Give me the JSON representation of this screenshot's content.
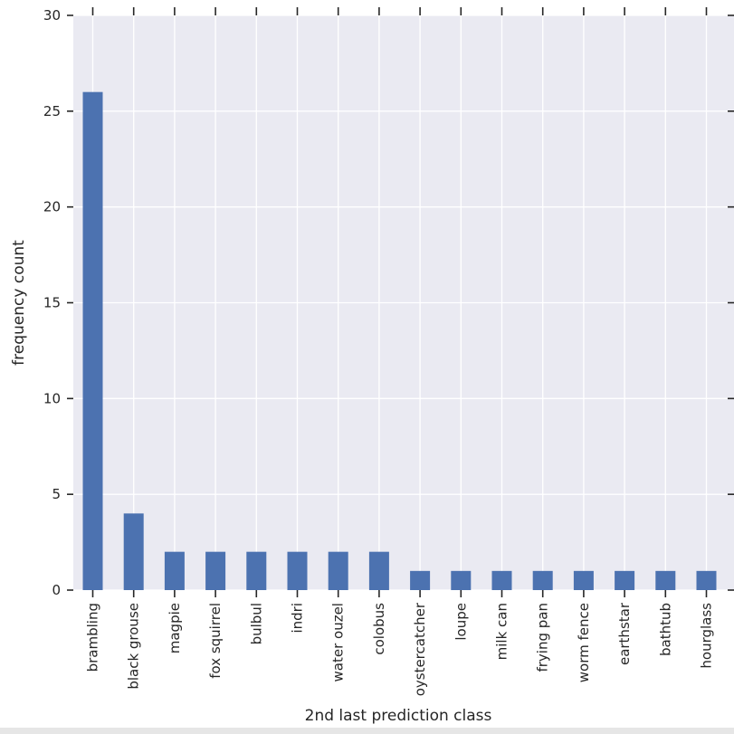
{
  "chart_data": {
    "type": "bar",
    "title": "",
    "xlabel": "2nd last prediction class",
    "ylabel": "frequency count",
    "ylim": [
      0,
      30
    ],
    "yticks": [
      0,
      5,
      10,
      15,
      20,
      25,
      30
    ],
    "grid": true,
    "legend": "none",
    "categories": [
      "brambling",
      "black grouse",
      "magpie",
      "fox squirrel",
      "bulbul",
      "indri",
      "water ouzel",
      "colobus",
      "oystercatcher",
      "loupe",
      "milk can",
      "frying pan",
      "worm fence",
      "earthstar",
      "bathtub",
      "hourglass"
    ],
    "values": [
      26,
      4,
      2,
      2,
      2,
      2,
      2,
      2,
      1,
      1,
      1,
      1,
      1,
      1,
      1,
      1
    ],
    "colors": {
      "bar": "#4c72b0",
      "background": "#eaeaf2",
      "grid": "#ffffff"
    }
  }
}
